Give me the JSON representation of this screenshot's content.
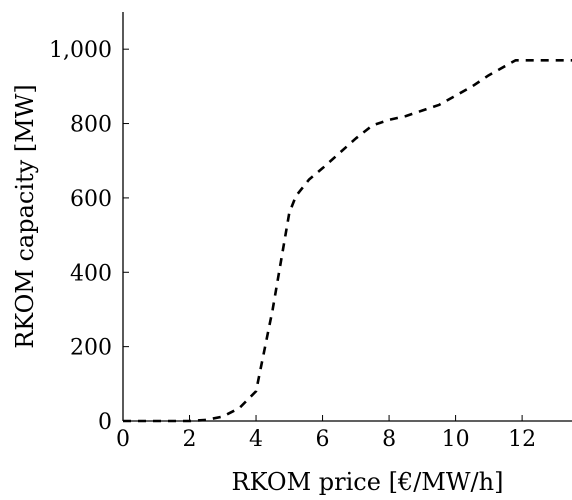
{
  "chart_data": {
    "type": "line",
    "title": "",
    "xlabel": "RKOM price [€/MW/h]",
    "ylabel": "RKOM capacity [MW]",
    "xlim": [
      0,
      13.5
    ],
    "ylim": [
      0,
      1100
    ],
    "x_ticks": [
      0,
      2,
      4,
      6,
      8,
      10,
      12
    ],
    "x_tick_labels": [
      "0",
      "2",
      "4",
      "6",
      "8",
      "10",
      "12"
    ],
    "y_ticks": [
      0,
      200,
      400,
      600,
      800,
      1000
    ],
    "y_tick_labels": [
      "0",
      "200",
      "400",
      "600",
      "800",
      "1,000"
    ],
    "grid": false,
    "legend": "none",
    "series": [
      {
        "line_style": "dashed",
        "color": "#000000",
        "x": [
          0,
          1.0,
          2.0,
          2.5,
          3.0,
          3.5,
          4.0,
          4.5,
          5.0,
          5.2,
          5.6,
          6.0,
          6.5,
          7.0,
          7.5,
          8.0,
          8.5,
          9.0,
          9.5,
          10.0,
          10.5,
          11.0,
          11.5,
          11.8,
          12.5,
          13.5
        ],
        "y": [
          0,
          0,
          0,
          3,
          12,
          35,
          80,
          300,
          560,
          605,
          650,
          680,
          720,
          760,
          795,
          810,
          820,
          835,
          850,
          875,
          900,
          930,
          955,
          970,
          970,
          970
        ]
      }
    ]
  }
}
